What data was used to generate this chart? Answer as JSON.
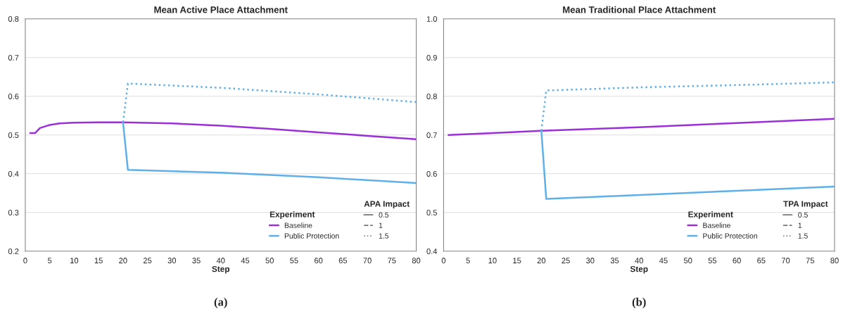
{
  "chart_data": [
    {
      "type": "line",
      "title": "Mean Active Place Attachment",
      "xlabel": "Step",
      "legend_title": "Experiment",
      "legend": "bottom right",
      "grid": "y",
      "marker": "none",
      "xlim": [
        0,
        80
      ],
      "xticks": [
        0,
        5,
        10,
        15,
        20,
        25,
        30,
        35,
        40,
        45,
        50,
        55,
        60,
        65,
        70,
        75,
        80
      ],
      "ylim": [
        0.2,
        0.8
      ],
      "yticks": [
        0.2,
        0.3,
        0.4,
        0.5,
        0.6,
        0.7,
        0.8
      ],
      "annotations": [
        "(a)",
        "APA Impact",
        "0.5",
        "1",
        "1.5"
      ],
      "series": [
        {
          "name": "Baseline",
          "color": "#9b30d9",
          "line_style": "solid",
          "x": [
            1,
            2,
            3,
            4,
            5,
            7,
            10,
            15,
            20,
            30,
            40,
            50,
            60,
            70,
            80
          ],
          "values": [
            0.505,
            0.505,
            0.518,
            0.522,
            0.526,
            0.53,
            0.532,
            0.533,
            0.533,
            0.53,
            0.524,
            0.516,
            0.507,
            0.498,
            0.489
          ]
        },
        {
          "name": "Public Protection",
          "color": "#5fb0e8",
          "line_style": "solid",
          "x": [
            20,
            21,
            40,
            60,
            80
          ],
          "values": [
            0.533,
            0.41,
            0.403,
            0.391,
            0.376
          ]
        },
        {
          "color": "#5fb0e8",
          "line_style": "dotted",
          "x": [
            20,
            21,
            40,
            60,
            80
          ],
          "values": [
            0.533,
            0.633,
            0.622,
            0.605,
            0.585
          ]
        }
      ]
    },
    {
      "type": "line",
      "title": "Mean Traditional Place Attachment",
      "xlabel": "Step",
      "legend_title": "Experiment",
      "legend": "bottom right",
      "grid": "y",
      "marker": "none",
      "xlim": [
        0,
        80
      ],
      "xticks": [
        0,
        5,
        10,
        15,
        20,
        25,
        30,
        35,
        40,
        45,
        50,
        55,
        60,
        65,
        70,
        75,
        80
      ],
      "ylim": [
        0.4,
        1.0
      ],
      "yticks": [
        0.4,
        0.5,
        0.6,
        0.7,
        0.8,
        0.9,
        {
          "value": 1.0,
          "label": "1.0"
        }
      ],
      "annotations": [
        "(b)",
        "TPA Impact",
        "0.5",
        "1",
        "1.5"
      ],
      "series": [
        {
          "name": "Baseline",
          "color": "#9b30d9",
          "line_style": "solid",
          "x": [
            1,
            10,
            20,
            40,
            60,
            80
          ],
          "values": [
            0.7,
            0.705,
            0.711,
            0.72,
            0.731,
            0.742
          ]
        },
        {
          "name": "Public Protection",
          "color": "#5fb0e8",
          "line_style": "solid",
          "x": [
            20,
            21,
            40,
            60,
            80
          ],
          "values": [
            0.711,
            0.535,
            0.545,
            0.556,
            0.567
          ]
        },
        {
          "color": "#5fb0e8",
          "line_style": "dotted",
          "x": [
            20,
            21,
            40,
            60,
            80
          ],
          "values": [
            0.711,
            0.815,
            0.823,
            0.829,
            0.836
          ]
        }
      ]
    }
  ]
}
